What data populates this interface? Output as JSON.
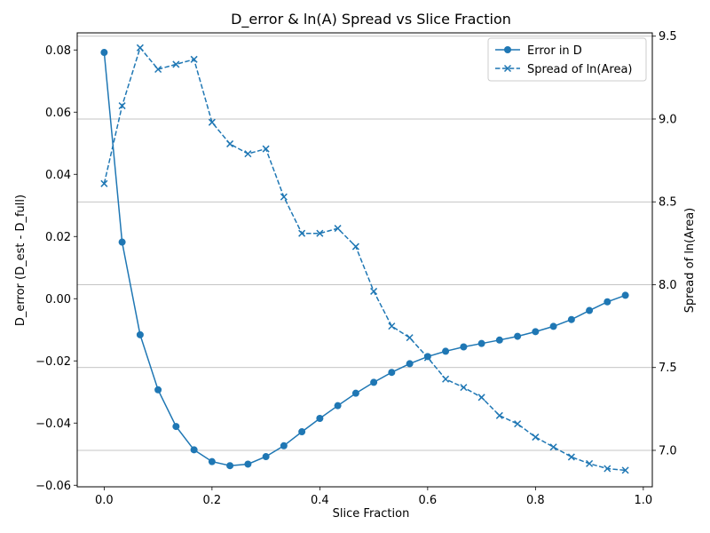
{
  "chart_data": {
    "type": "line",
    "title": "D_error & ln(A) Spread vs Slice Fraction",
    "xlabel": "Slice Fraction",
    "ylabel_left": "D_error (D_est - D_full)",
    "ylabel_right": "Spread of ln(Area)",
    "xlim": [
      -0.05,
      1.0167
    ],
    "ylim_left": [
      -0.0605,
      0.0855
    ],
    "ylim_right": [
      6.78,
      9.52
    ],
    "x_ticks": [
      0.0,
      0.2,
      0.4,
      0.6,
      0.8,
      1.0
    ],
    "x_tick_labels": [
      "0.0",
      "0.2",
      "0.4",
      "0.6",
      "0.8",
      "1.0"
    ],
    "y_left_ticks": [
      0.08,
      0.06,
      0.04,
      0.02,
      0.0,
      -0.02,
      -0.04,
      -0.06
    ],
    "y_left_tick_labels": [
      "0.08",
      "0.06",
      "0.04",
      "0.02",
      "0.00",
      "−0.02",
      "−0.04",
      "−0.06"
    ],
    "y_right_ticks": [
      9.5,
      9.0,
      8.5,
      8.0,
      7.5,
      7.0
    ],
    "y_right_tick_labels": [
      "9.5",
      "9.0",
      "8.5",
      "8.0",
      "7.5",
      "7.0"
    ],
    "grid": "horizontal lines at right-axis ticks",
    "legend_position": "top-right",
    "x": [
      0.0,
      0.0333,
      0.0667,
      0.1,
      0.1333,
      0.1667,
      0.2,
      0.2333,
      0.2667,
      0.3,
      0.3333,
      0.3667,
      0.4,
      0.4333,
      0.4667,
      0.5,
      0.5333,
      0.5667,
      0.6,
      0.6333,
      0.6667,
      0.7,
      0.7333,
      0.7667,
      0.8,
      0.8333,
      0.8667,
      0.9,
      0.9333,
      0.9667
    ],
    "series": [
      {
        "name": "Error in D",
        "axis": "left",
        "style": "solid",
        "marker": "circle",
        "color": "#1f77b4",
        "values": [
          0.0792,
          0.0182,
          -0.0116,
          -0.0293,
          -0.0411,
          -0.0486,
          -0.0524,
          -0.0537,
          -0.0532,
          -0.0508,
          -0.0473,
          -0.0428,
          -0.0385,
          -0.0344,
          -0.0304,
          -0.0269,
          -0.0237,
          -0.0209,
          -0.0186,
          -0.0169,
          -0.0155,
          -0.0144,
          -0.0133,
          -0.0121,
          -0.0106,
          -0.0089,
          -0.0067,
          -0.0038,
          -0.001,
          0.0011
        ]
      },
      {
        "name": "Spread of ln(Area)",
        "axis": "right",
        "style": "dashed",
        "marker": "x",
        "color": "#1f77b4",
        "values": [
          8.61,
          9.08,
          9.43,
          9.3,
          9.33,
          9.36,
          8.98,
          8.85,
          8.79,
          8.82,
          8.53,
          8.31,
          8.31,
          8.34,
          8.23,
          7.96,
          7.75,
          7.68,
          7.56,
          7.43,
          7.38,
          7.32,
          7.21,
          7.16,
          7.08,
          7.02,
          6.96,
          6.92,
          6.89,
          6.88
        ]
      }
    ]
  }
}
